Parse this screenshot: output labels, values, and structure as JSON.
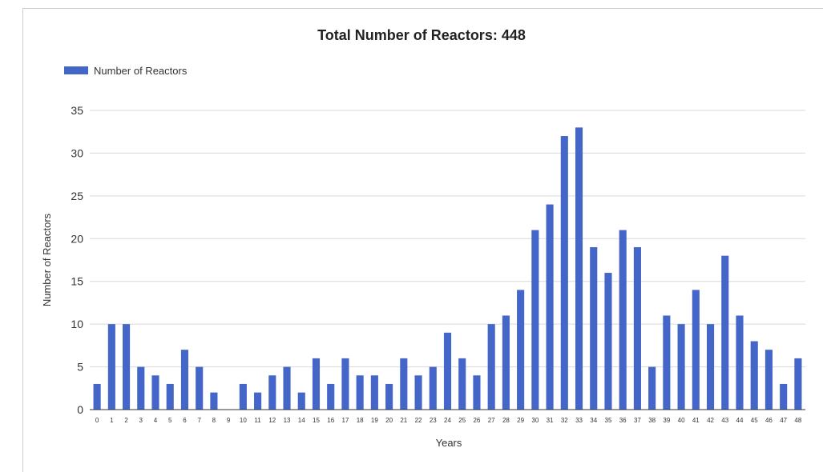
{
  "chart_data": {
    "type": "bar",
    "title": "Total Number of Reactors: 448",
    "xlabel": "Years",
    "ylabel": "Number of Reactors",
    "legend": {
      "position": "top-left",
      "entries": [
        "Number of Reactors"
      ]
    },
    "ylim": [
      0,
      35
    ],
    "yticks": [
      0,
      5,
      10,
      15,
      20,
      25,
      30,
      35
    ],
    "grid": true,
    "color": "#4466c8",
    "categories": [
      "0",
      "1",
      "2",
      "3",
      "4",
      "5",
      "6",
      "7",
      "8",
      "9",
      "10",
      "11",
      "12",
      "13",
      "14",
      "15",
      "16",
      "17",
      "18",
      "19",
      "20",
      "21",
      "22",
      "23",
      "24",
      "25",
      "26",
      "27",
      "28",
      "29",
      "30",
      "31",
      "32",
      "33",
      "34",
      "35",
      "36",
      "37",
      "38",
      "39",
      "40",
      "41",
      "42",
      "43",
      "44",
      "45",
      "46",
      "47",
      "48"
    ],
    "series": [
      {
        "name": "Number of Reactors",
        "values": [
          3,
          10,
          10,
          5,
          4,
          3,
          7,
          5,
          2,
          0,
          3,
          2,
          4,
          5,
          2,
          6,
          3,
          6,
          4,
          4,
          3,
          6,
          4,
          5,
          9,
          6,
          4,
          10,
          11,
          14,
          21,
          24,
          32,
          33,
          19,
          16,
          21,
          19,
          5,
          11,
          10,
          14,
          10,
          18,
          11,
          8,
          7,
          3,
          6
        ]
      }
    ]
  }
}
